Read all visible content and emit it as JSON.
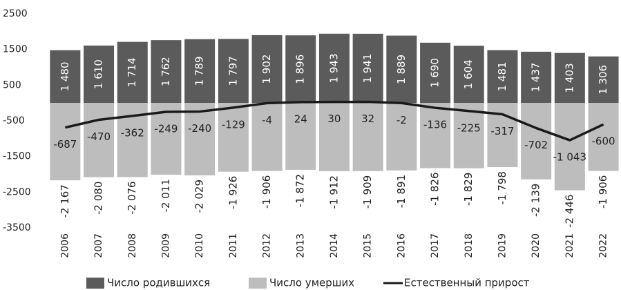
{
  "chart_data": {
    "type": "bar-line",
    "categories": [
      "2006",
      "2007",
      "2008",
      "2009",
      "2010",
      "2011",
      "2012",
      "2013",
      "2014",
      "2015",
      "2016",
      "2017",
      "2018",
      "2019",
      "2020",
      "2021",
      "2022"
    ],
    "series": [
      {
        "name": "Число родившихся",
        "color": "#5b5b5b",
        "type": "bar",
        "values": [
          1480,
          1610,
          1714,
          1762,
          1789,
          1797,
          1902,
          1896,
          1943,
          1941,
          1889,
          1690,
          1604,
          1481,
          1437,
          1403,
          1306
        ],
        "value_labels": [
          "1 480",
          "1 610",
          "1 714",
          "1 762",
          "1 789",
          "1 797",
          "1 902",
          "1 896",
          "1 943",
          "1 941",
          "1 889",
          "1 690",
          "1 604",
          "1 481",
          "1 437",
          "1 403",
          "1 306"
        ]
      },
      {
        "name": "Число умерших",
        "color": "#bdbdbd",
        "type": "bar",
        "values": [
          -2167,
          -2080,
          -2076,
          -2011,
          -2029,
          -1926,
          -1906,
          -1872,
          -1912,
          -1909,
          -1891,
          -1826,
          -1829,
          -1798,
          -2139,
          -2446,
          -1906
        ],
        "value_labels": [
          "-2 167",
          "-2 080",
          "-2 076",
          "-2 011",
          "-2 029",
          "-1 926",
          "-1 906",
          "-1 872",
          "-1 912",
          "-1 909",
          "-1 891",
          "-1 826",
          "-1 829",
          "-1 798",
          "-2 139",
          "-2 446",
          "-1 906"
        ]
      },
      {
        "name": "Естественный прирост",
        "color": "#1a1a1a",
        "type": "line",
        "values": [
          -687,
          -470,
          -362,
          -249,
          -240,
          -129,
          -4,
          24,
          30,
          32,
          -2,
          -136,
          -225,
          -317,
          -702,
          -1043,
          -600
        ],
        "value_labels": [
          "-687",
          "-470",
          "-362",
          "-249",
          "-240",
          "-129",
          "-4",
          "24",
          "30",
          "32",
          "-2",
          "-136",
          "-225",
          "-317",
          "-702",
          "-1 043",
          "-600"
        ]
      }
    ],
    "ylim": [
      -3500,
      2500
    ],
    "yticks": [
      -3500,
      -2500,
      -1500,
      -500,
      500,
      1500,
      2500
    ],
    "legend": "bottom"
  }
}
